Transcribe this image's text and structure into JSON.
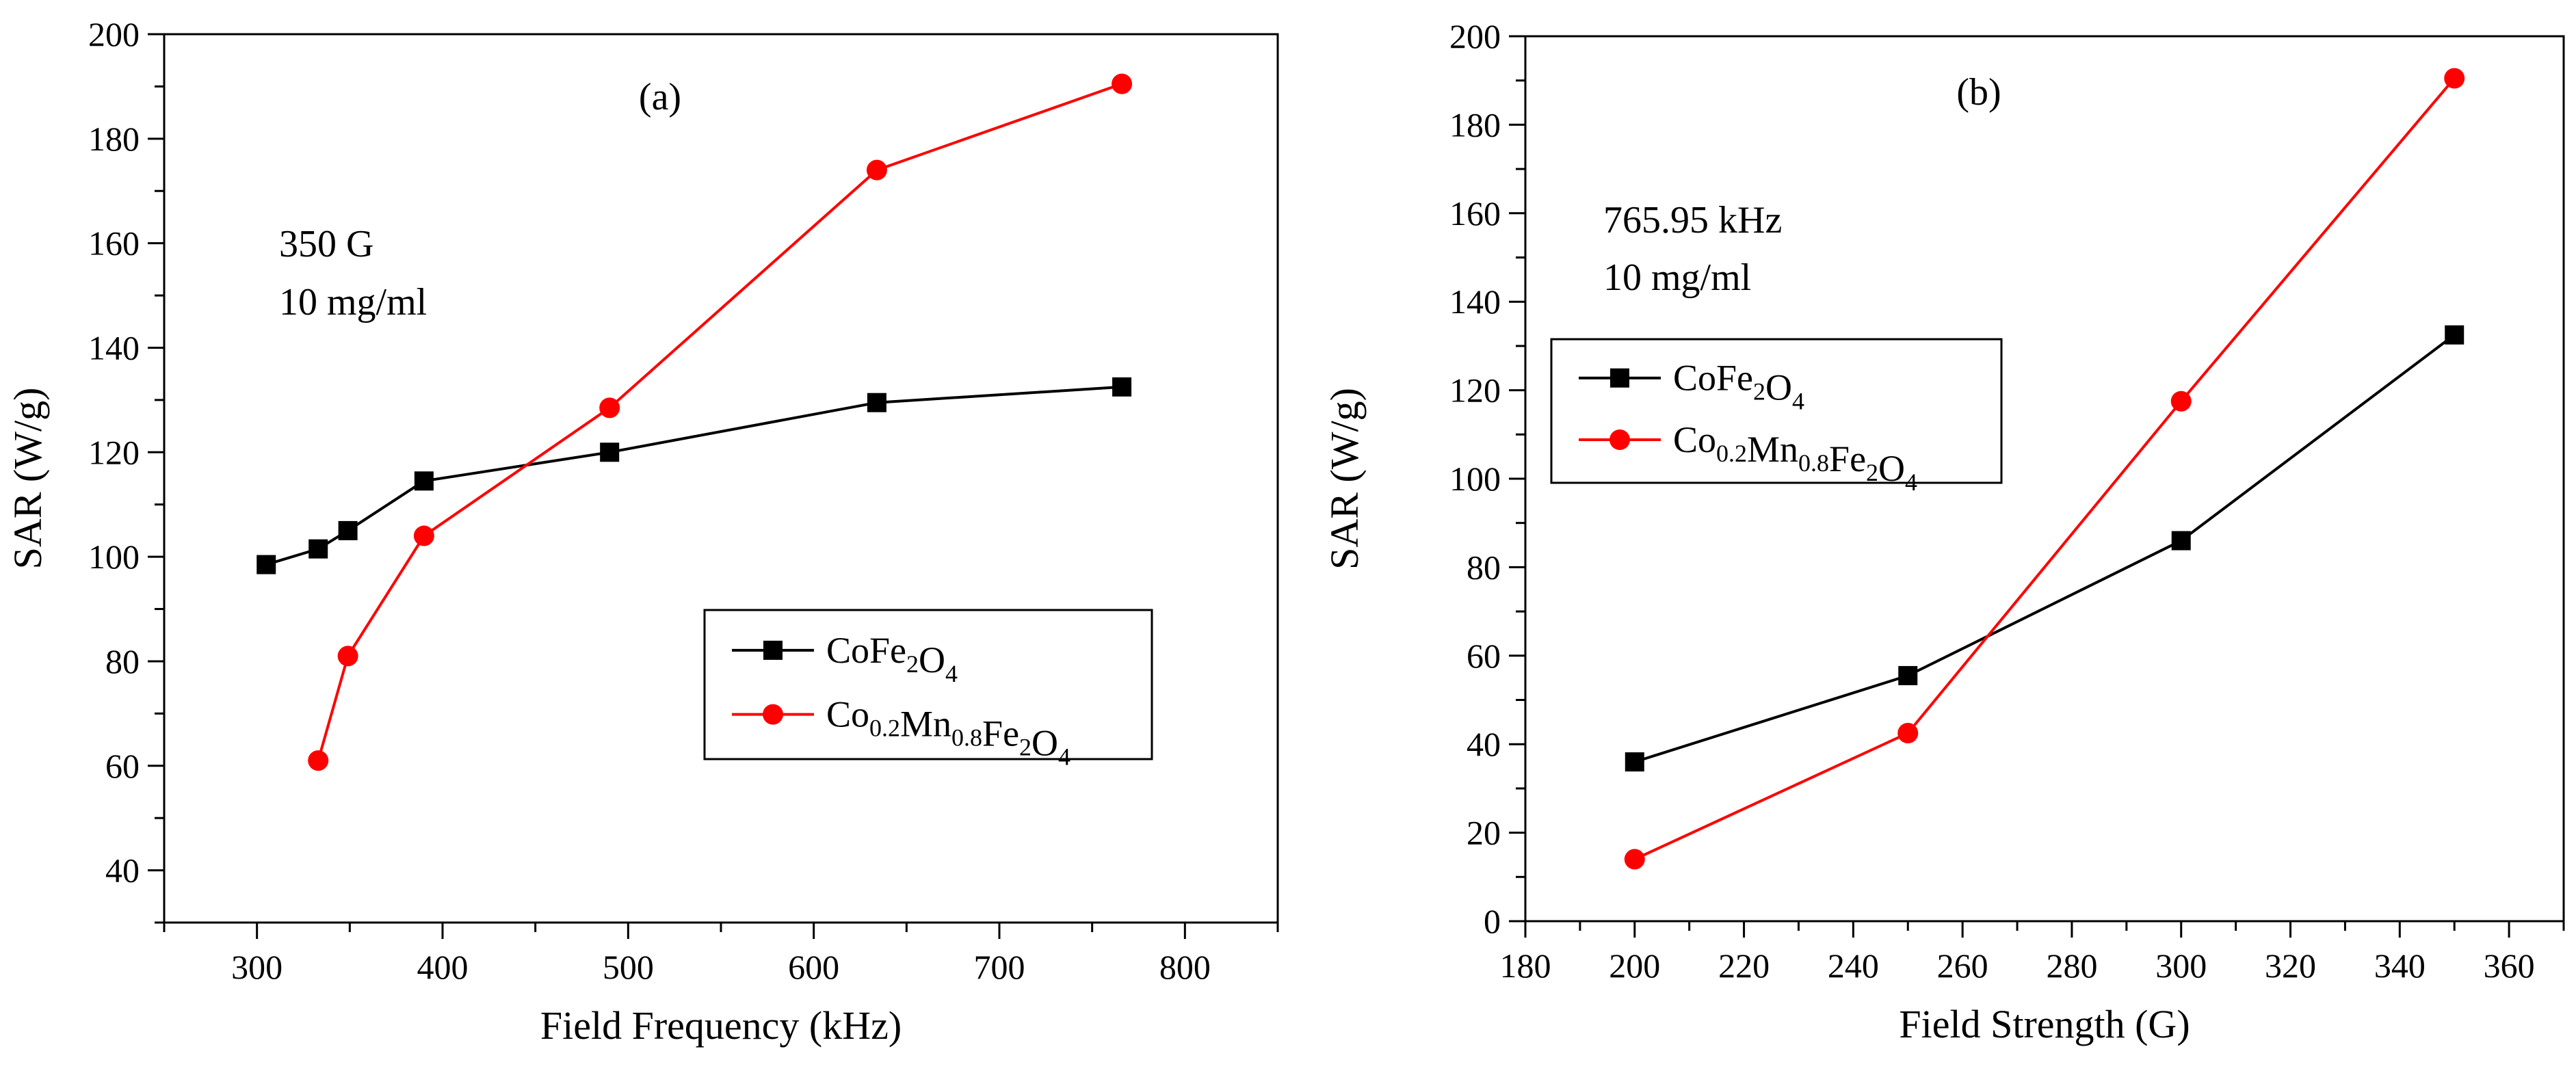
{
  "colors": {
    "black": "#000000",
    "red": "#ff0000"
  },
  "chart_data": [
    {
      "type": "line",
      "panel_label": "(a)",
      "xlabel": "Field Frequency (kHz)",
      "ylabel": "SAR (W/g)",
      "xlim": [
        250,
        850
      ],
      "ylim": [
        30,
        200
      ],
      "xticks": [
        300,
        400,
        500,
        600,
        700,
        800
      ],
      "yticks": [
        40,
        60,
        80,
        100,
        120,
        140,
        160,
        180,
        200
      ],
      "annotations": [
        "350 G",
        "10 mg/ml"
      ],
      "legend_position": "lower-right",
      "series": [
        {
          "name": "CoFe2O4",
          "label_parts": [
            [
              "CoFe",
              ""
            ],
            [
              "2",
              "sub"
            ],
            [
              "O",
              ""
            ],
            [
              "4",
              "sub"
            ]
          ],
          "color": "#000000",
          "marker": "square",
          "x": [
            305,
            333,
            349,
            390,
            490,
            634,
            766
          ],
          "y": [
            98.5,
            101.5,
            105,
            114.5,
            120,
            129.5,
            132.5
          ]
        },
        {
          "name": "Co0.2Mn0.8Fe2O4",
          "label_parts": [
            [
              "Co",
              ""
            ],
            [
              "0.2",
              "sub"
            ],
            [
              "Mn",
              ""
            ],
            [
              "0.8",
              "sub"
            ],
            [
              "Fe",
              ""
            ],
            [
              "2",
              "sub"
            ],
            [
              "O",
              ""
            ],
            [
              "4",
              "sub"
            ]
          ],
          "color": "#ff0000",
          "marker": "circle",
          "x": [
            333,
            349,
            390,
            490,
            634,
            766
          ],
          "y": [
            61,
            81,
            104,
            128.5,
            174,
            190.5
          ]
        }
      ]
    },
    {
      "type": "line",
      "panel_label": "(b)",
      "xlabel": "Field Strength (G)",
      "ylabel": "SAR (W/g)",
      "xlim": [
        180,
        370
      ],
      "ylim": [
        0,
        200
      ],
      "xticks": [
        180,
        200,
        220,
        240,
        260,
        280,
        300,
        320,
        340,
        360
      ],
      "yticks": [
        0,
        20,
        40,
        60,
        80,
        100,
        120,
        140,
        160,
        180,
        200
      ],
      "annotations": [
        "765.95 kHz",
        "10 mg/ml"
      ],
      "legend_position": "upper-left",
      "series": [
        {
          "name": "CoFe2O4",
          "label_parts": [
            [
              "CoFe",
              ""
            ],
            [
              "2",
              "sub"
            ],
            [
              "O",
              ""
            ],
            [
              "4",
              "sub"
            ]
          ],
          "color": "#000000",
          "marker": "square",
          "x": [
            200,
            250,
            300,
            350
          ],
          "y": [
            36,
            55.5,
            86,
            132.5
          ]
        },
        {
          "name": "Co0.2Mn0.8Fe2O4",
          "label_parts": [
            [
              "Co",
              ""
            ],
            [
              "0.2",
              "sub"
            ],
            [
              "Mn",
              ""
            ],
            [
              "0.8",
              "sub"
            ],
            [
              "Fe",
              ""
            ],
            [
              "2",
              "sub"
            ],
            [
              "O",
              ""
            ],
            [
              "4",
              "sub"
            ]
          ],
          "color": "#ff0000",
          "marker": "circle",
          "x": [
            200,
            250,
            300,
            350
          ],
          "y": [
            14,
            42.5,
            117.5,
            190.5
          ]
        }
      ]
    }
  ]
}
